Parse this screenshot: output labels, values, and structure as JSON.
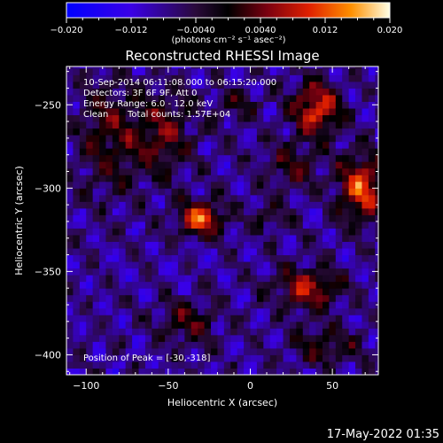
{
  "chart_data": {
    "type": "heatmap",
    "title": "Reconstructed RHESSI Image",
    "xlabel": "Heliocentric X (arcsec)",
    "ylabel": "Heliocentric Y (arcsec)",
    "xlim": [
      -112,
      78
    ],
    "ylim": [
      -412,
      -227
    ],
    "x_ticks": [
      -100,
      -50,
      0,
      50
    ],
    "y_ticks": [
      -250,
      -300,
      -350,
      -400
    ],
    "colorbar": {
      "range": [
        -0.02,
        0.02
      ],
      "ticks": [
        "−0.020",
        "−0.012",
        "−0.0040",
        "0.0040",
        "0.012",
        "0.020"
      ],
      "unit_label": "(photons cm⁻² s⁻¹ asec⁻²)"
    },
    "annotations": [
      "10-Sep-2014 06:11:08.000 to 06:15:20.000",
      "Detectors: 3F 6F 9F, Att 0",
      "Energy Range: 6.0 - 12.0 keV",
      "Clean",
      "Total counts: 1.57E+04"
    ],
    "peak_label": "Position of Peak = [-30,-318]",
    "sources": [
      {
        "x": -30,
        "y": -318,
        "amp": 0.0195,
        "sx": 9,
        "sy": 7
      },
      {
        "x": -55,
        "y": -268,
        "amp": 0.0105,
        "sx": 14,
        "sy": 18
      },
      {
        "x": -88,
        "y": -268,
        "amp": 0.0085,
        "sx": 12,
        "sy": 24
      },
      {
        "x": 40,
        "y": -252,
        "amp": 0.0175,
        "sx": 10,
        "sy": 11
      },
      {
        "x": 68,
        "y": -300,
        "amp": 0.0185,
        "sx": 10,
        "sy": 14
      },
      {
        "x": 25,
        "y": -287,
        "amp": 0.0075,
        "sx": 12,
        "sy": 10
      },
      {
        "x": 35,
        "y": -360,
        "amp": 0.0135,
        "sx": 14,
        "sy": 9
      },
      {
        "x": -38,
        "y": -380,
        "amp": 0.0095,
        "sx": 12,
        "sy": 9
      },
      {
        "x": 45,
        "y": -395,
        "amp": 0.0085,
        "sx": 15,
        "sy": 8
      },
      {
        "x": -8,
        "y": -250,
        "amp": 0.006,
        "sx": 9,
        "sy": 7
      },
      {
        "x": 10,
        "y": -318,
        "amp": 0.0055,
        "sx": 9,
        "sy": 7
      }
    ],
    "background": -0.0078
  },
  "footer_date": "17-May-2022 01:35"
}
